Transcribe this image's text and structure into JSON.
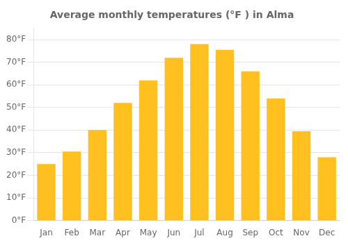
{
  "chart_data": {
    "type": "bar",
    "title": "Average monthly temperatures (°F ) in Alma",
    "categories": [
      "Jan",
      "Feb",
      "Mar",
      "Apr",
      "May",
      "Jun",
      "Jul",
      "Aug",
      "Sep",
      "Oct",
      "Nov",
      "Dec"
    ],
    "values": [
      25,
      30.5,
      40,
      52,
      62,
      72,
      78,
      75.5,
      66,
      54,
      39.5,
      28
    ],
    "color": "#FFC020",
    "ylim": [
      0,
      85
    ],
    "yticks": [
      {
        "value": 0,
        "label": "0°F"
      },
      {
        "value": 10,
        "label": "10°F"
      },
      {
        "value": 20,
        "label": "20°F"
      },
      {
        "value": 30,
        "label": "30°F"
      },
      {
        "value": 40,
        "label": "40°F"
      },
      {
        "value": 50,
        "label": "50°F"
      },
      {
        "value": 60,
        "label": "60°F"
      },
      {
        "value": 70,
        "label": "70°F"
      },
      {
        "value": 80,
        "label": "80°F"
      }
    ],
    "grid": true
  }
}
